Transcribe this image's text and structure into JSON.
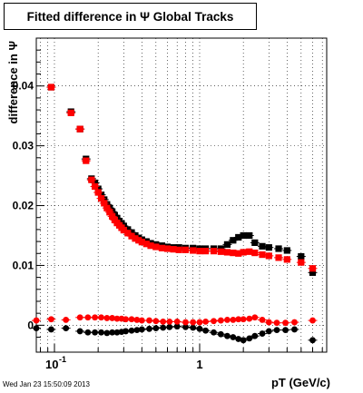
{
  "chart_data": {
    "type": "scatter",
    "title": "Fitted difference in Ψ   Global Tracks",
    "xlabel": "pT (GeV/c)",
    "ylabel": "difference in Ψ",
    "x_scale": "log",
    "xlim": [
      0.075,
      7.5
    ],
    "ylim": [
      -0.0045,
      0.048
    ],
    "grid": true,
    "legend": "none",
    "y_ticks": [
      0,
      0.01,
      0.02,
      0.03,
      0.04
    ],
    "y_tick_labels": [
      "0",
      "0.01",
      "0.02",
      "0.03",
      "0.04"
    ],
    "x_tick_labels": [
      {
        "x": 0.1,
        "text": "10",
        "sup": "-1"
      },
      {
        "x": 1,
        "text": "1",
        "sup": ""
      }
    ],
    "series": [
      {
        "color": "#000000",
        "marker": "square",
        "x": [
          0.095,
          0.13,
          0.15,
          0.165,
          0.18,
          0.19,
          0.2,
          0.21,
          0.22,
          0.23,
          0.24,
          0.25,
          0.26,
          0.27,
          0.28,
          0.29,
          0.3,
          0.32,
          0.34,
          0.36,
          0.38,
          0.4,
          0.43,
          0.46,
          0.5,
          0.55,
          0.6,
          0.66,
          0.72,
          0.8,
          0.9,
          1.0,
          1.1,
          1.25,
          1.4,
          1.55,
          1.7,
          1.85,
          2.0,
          2.2,
          2.4,
          2.7,
          3.0,
          3.5,
          4.0,
          5.0,
          6.0
        ],
        "y": [
          0.0398,
          0.0357,
          0.0328,
          0.0278,
          0.0245,
          0.0238,
          0.0228,
          0.0218,
          0.021,
          0.0202,
          0.0196,
          0.019,
          0.0184,
          0.0179,
          0.0174,
          0.017,
          0.0166,
          0.016,
          0.0155,
          0.015,
          0.0146,
          0.0143,
          0.014,
          0.0137,
          0.0135,
          0.0133,
          0.0131,
          0.013,
          0.013,
          0.0129,
          0.0129,
          0.0128,
          0.0128,
          0.0128,
          0.0128,
          0.0135,
          0.0142,
          0.0147,
          0.015,
          0.015,
          0.0138,
          0.0132,
          0.013,
          0.0128,
          0.0125,
          0.0115,
          0.0088
        ]
      },
      {
        "color": "#ff0000",
        "marker": "square",
        "x": [
          0.095,
          0.13,
          0.15,
          0.165,
          0.18,
          0.19,
          0.2,
          0.21,
          0.22,
          0.23,
          0.24,
          0.25,
          0.26,
          0.27,
          0.28,
          0.29,
          0.3,
          0.32,
          0.34,
          0.36,
          0.38,
          0.4,
          0.43,
          0.46,
          0.5,
          0.55,
          0.6,
          0.66,
          0.72,
          0.8,
          0.9,
          1.0,
          1.1,
          1.25,
          1.4,
          1.55,
          1.7,
          1.85,
          2.0,
          2.2,
          2.4,
          2.7,
          3.0,
          3.5,
          4.0,
          5.0,
          6.0
        ],
        "y": [
          0.0398,
          0.0355,
          0.0328,
          0.0275,
          0.0243,
          0.0232,
          0.0222,
          0.0212,
          0.0204,
          0.0196,
          0.0189,
          0.0182,
          0.0176,
          0.0171,
          0.0167,
          0.0163,
          0.0159,
          0.0154,
          0.0149,
          0.0145,
          0.0142,
          0.0139,
          0.0136,
          0.0133,
          0.0131,
          0.0129,
          0.0128,
          0.0127,
          0.0126,
          0.0126,
          0.0125,
          0.0124,
          0.0124,
          0.0124,
          0.0123,
          0.0122,
          0.0121,
          0.012,
          0.0122,
          0.0123,
          0.0121,
          0.0118,
          0.0116,
          0.0113,
          0.011,
          0.0105,
          0.0095
        ]
      },
      {
        "color": "#000000",
        "marker": "circle",
        "x": [
          0.075,
          0.095,
          0.12,
          0.15,
          0.17,
          0.19,
          0.21,
          0.23,
          0.25,
          0.27,
          0.29,
          0.31,
          0.34,
          0.37,
          0.4,
          0.45,
          0.5,
          0.56,
          0.62,
          0.7,
          0.8,
          0.9,
          1.0,
          1.1,
          1.25,
          1.4,
          1.55,
          1.7,
          1.85,
          2.0,
          2.2,
          2.4,
          2.7,
          3.0,
          3.4,
          3.9,
          4.5,
          6.0
        ],
        "y": [
          -0.0005,
          -0.0007,
          -0.0005,
          -0.001,
          -0.0012,
          -0.0012,
          -0.0012,
          -0.0013,
          -0.0012,
          -0.0012,
          -0.0011,
          -0.001,
          -0.0009,
          -0.0008,
          -0.0007,
          -0.0006,
          -0.0005,
          -0.0004,
          -0.0003,
          -0.0002,
          -0.0003,
          -0.0004,
          -0.0006,
          -0.0009,
          -0.0012,
          -0.0015,
          -0.0018,
          -0.002,
          -0.0023,
          -0.0025,
          -0.0022,
          -0.0018,
          -0.0014,
          -0.001,
          -0.0008,
          -0.0008,
          -0.0007,
          -0.0025
        ]
      },
      {
        "color": "#ff0000",
        "marker": "circle",
        "x": [
          0.075,
          0.095,
          0.12,
          0.15,
          0.17,
          0.19,
          0.21,
          0.23,
          0.25,
          0.27,
          0.29,
          0.31,
          0.34,
          0.37,
          0.4,
          0.45,
          0.5,
          0.56,
          0.62,
          0.7,
          0.8,
          0.9,
          1.0,
          1.1,
          1.25,
          1.4,
          1.55,
          1.7,
          1.85,
          2.0,
          2.2,
          2.4,
          2.7,
          3.0,
          3.4,
          3.9,
          4.5,
          6.0
        ],
        "y": [
          0.0008,
          0.001,
          0.0009,
          0.0013,
          0.0013,
          0.0013,
          0.0013,
          0.0012,
          0.0012,
          0.0011,
          0.0011,
          0.001,
          0.001,
          0.0009,
          0.0008,
          0.0008,
          0.0007,
          0.0006,
          0.0006,
          0.0006,
          0.0005,
          0.0005,
          0.0005,
          0.0006,
          0.0007,
          0.0008,
          0.0009,
          0.0009,
          0.001,
          0.001,
          0.0011,
          0.0013,
          0.0009,
          0.0005,
          0.0004,
          0.0004,
          0.0005,
          0.0008
        ]
      }
    ]
  },
  "timestamp": "Wed Jan 23 15:50:09 2013"
}
